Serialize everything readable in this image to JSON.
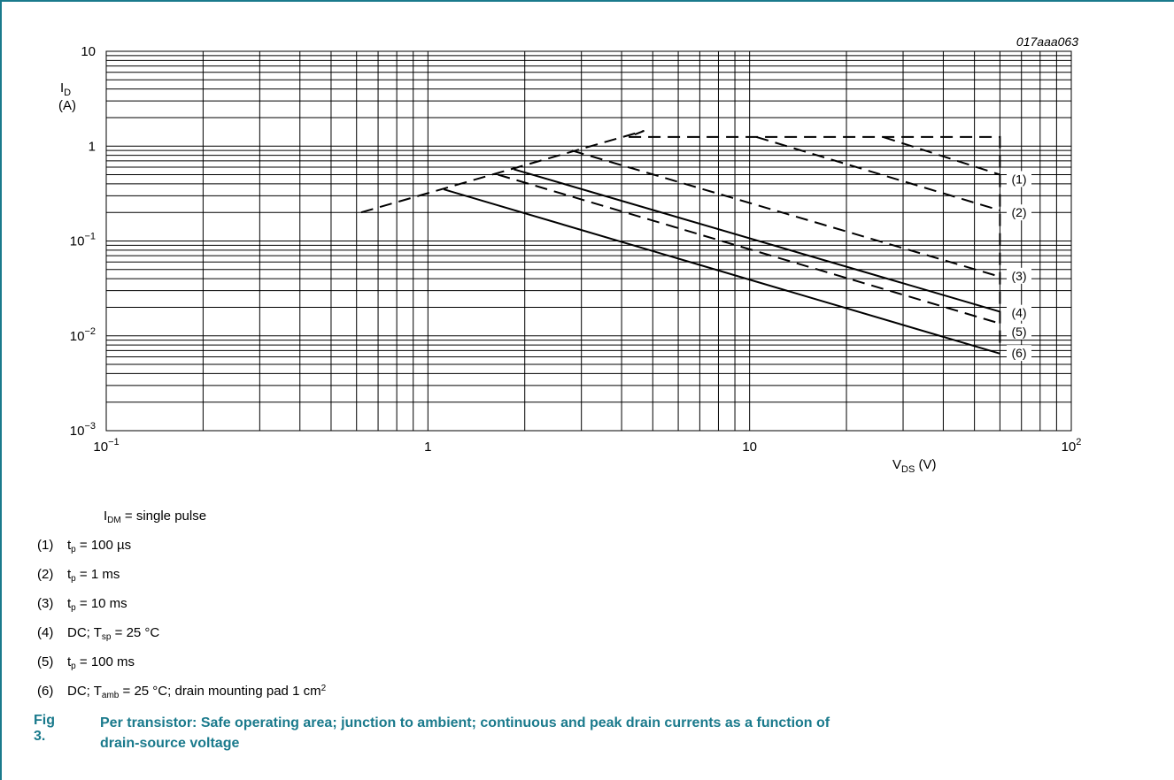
{
  "colors": {
    "accent": "#1a7a8c",
    "line": "#000000",
    "grid": "#000000"
  },
  "figure_id": "017aaa063",
  "caption": {
    "number": "Fig 3.",
    "text": "Per transistor: Safe operating area; junction to ambient; continuous and peak drain currents as a function of drain-source voltage"
  },
  "legend": {
    "header": {
      "main": "I",
      "sub": "DM",
      "rest": " = single pulse"
    },
    "items": [
      {
        "num": "(1)",
        "pre": "t",
        "sub": "p",
        "post": " = 100 µs",
        "sup": ""
      },
      {
        "num": "(2)",
        "pre": "t",
        "sub": "p",
        "post": " = 1 ms",
        "sup": ""
      },
      {
        "num": "(3)",
        "pre": "t",
        "sub": "p",
        "post": " = 10 ms",
        "sup": ""
      },
      {
        "num": "(4)",
        "pre": "DC; T",
        "sub": "sp",
        "post": " = 25 °C",
        "sup": ""
      },
      {
        "num": "(5)",
        "pre": "t",
        "sub": "p",
        "post": " = 100 ms",
        "sup": ""
      },
      {
        "num": "(6)",
        "pre": "DC; T",
        "sub": "amb",
        "post": " = 25 °C; drain mounting pad 1 cm",
        "sup": "2"
      }
    ]
  },
  "chart_data": {
    "type": "line",
    "xscale": "log",
    "yscale": "log",
    "xlim": [
      0.1,
      100
    ],
    "ylim": [
      0.001,
      10
    ],
    "grid": true,
    "xlabel": {
      "main": "V",
      "sub": "DS",
      "rest": " (V)"
    },
    "ylabel": {
      "main": "I",
      "sub": "D",
      "unit": "(A)"
    },
    "xticks": [
      {
        "value": 0.1,
        "base": "10",
        "exp": "−1"
      },
      {
        "value": 1,
        "base": "1",
        "exp": ""
      },
      {
        "value": 10,
        "base": "10",
        "exp": ""
      },
      {
        "value": 100,
        "base": "10",
        "exp": "2"
      }
    ],
    "yticks": [
      {
        "value": 10,
        "base": "10",
        "exp": ""
      },
      {
        "value": 1,
        "base": "1",
        "exp": ""
      },
      {
        "value": 0.1,
        "base": "10",
        "exp": "−1"
      },
      {
        "value": 0.01,
        "base": "10",
        "exp": "−2"
      },
      {
        "value": 0.001,
        "base": "10",
        "exp": "−3"
      }
    ],
    "series": [
      {
        "label": "(1)",
        "style": "dashed",
        "points": [
          [
            0.62,
            0.2
          ],
          [
            4.7,
            1.45
          ],
          [
            4.2,
            1.25
          ],
          [
            60,
            1.25
          ],
          [
            60,
            0.0075
          ]
        ]
      },
      {
        "label": "(1)",
        "style": "dashed",
        "points": [
          [
            26,
            1.25
          ],
          [
            60,
            0.5
          ]
        ]
      },
      {
        "label": "(2)",
        "style": "dashed",
        "points": [
          [
            10.5,
            1.25
          ],
          [
            60,
            0.21
          ]
        ]
      },
      {
        "label": "(3)",
        "style": "dashed",
        "points": [
          [
            2.8,
            0.9
          ],
          [
            60,
            0.042
          ]
        ]
      },
      {
        "label": "(4)",
        "style": "solid",
        "points": [
          [
            1.85,
            0.57
          ],
          [
            60,
            0.018
          ]
        ]
      },
      {
        "label": "(5)",
        "style": "dashed",
        "points": [
          [
            1.65,
            0.5
          ],
          [
            60,
            0.0135
          ]
        ]
      },
      {
        "label": "(6)",
        "style": "solid",
        "points": [
          [
            1.12,
            0.35
          ],
          [
            60,
            0.0065
          ]
        ]
      }
    ],
    "end_labels": [
      {
        "text": "(1)",
        "y": 0.45
      },
      {
        "text": "(2)",
        "y": 0.2
      },
      {
        "text": "(3)",
        "y": 0.043
      },
      {
        "text": "(4)",
        "y": 0.0175
      },
      {
        "text": "(5)",
        "y": 0.0111
      },
      {
        "text": "(6)",
        "y": 0.0066
      }
    ]
  }
}
